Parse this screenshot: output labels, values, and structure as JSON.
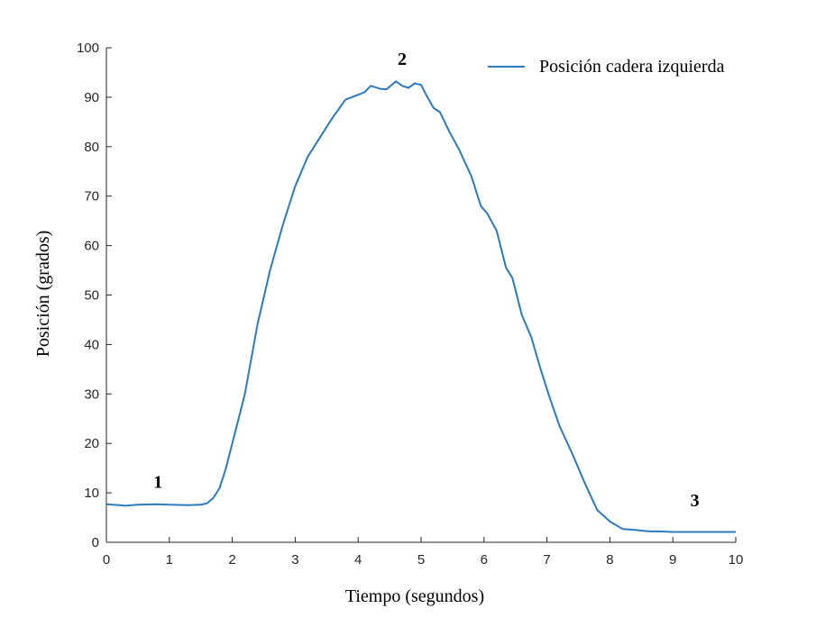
{
  "chart_data": {
    "type": "line",
    "title": "",
    "xlabel": "Tiempo (segundos)",
    "ylabel": "Posición (grados)",
    "xlim": [
      0,
      10
    ],
    "ylim": [
      0,
      100
    ],
    "x_ticks": [
      0,
      1,
      2,
      3,
      4,
      5,
      6,
      7,
      8,
      9,
      10
    ],
    "y_ticks": [
      0,
      10,
      20,
      30,
      40,
      50,
      60,
      70,
      80,
      90,
      100
    ],
    "grid": false,
    "legend_position": "top-right",
    "series": [
      {
        "name": "Posición cadera izquierda",
        "color": "#2a7bbf",
        "x": [
          0,
          0.2,
          0.3,
          0.5,
          0.8,
          1.0,
          1.3,
          1.5,
          1.6,
          1.7,
          1.8,
          1.9,
          2.0,
          2.2,
          2.4,
          2.6,
          2.8,
          3.0,
          3.2,
          3.4,
          3.6,
          3.8,
          4.0,
          4.1,
          4.2,
          4.35,
          4.45,
          4.6,
          4.7,
          4.8,
          4.9,
          5.0,
          5.1,
          5.2,
          5.3,
          5.45,
          5.6,
          5.8,
          5.95,
          6.05,
          6.2,
          6.35,
          6.45,
          6.6,
          6.75,
          6.9,
          7.05,
          7.2,
          7.4,
          7.6,
          7.8,
          8.0,
          8.2,
          8.4,
          8.55,
          8.65,
          8.8,
          9.0,
          9.3,
          9.6,
          10.0
        ],
        "y": [
          7.7,
          7.5,
          7.4,
          7.6,
          7.7,
          7.6,
          7.5,
          7.6,
          7.9,
          9.0,
          11.0,
          15.0,
          20.0,
          30.0,
          44.0,
          55.0,
          64.0,
          72.0,
          78.0,
          82.0,
          86.0,
          89.5,
          90.5,
          91.0,
          92.3,
          91.7,
          91.6,
          93.2,
          92.3,
          91.9,
          92.8,
          92.5,
          90.0,
          87.8,
          87.0,
          83.0,
          79.5,
          74.0,
          68.0,
          66.5,
          63.0,
          55.5,
          53.5,
          46.0,
          41.5,
          35.0,
          29.0,
          23.5,
          18.0,
          12.0,
          6.5,
          4.2,
          2.7,
          2.5,
          2.3,
          2.2,
          2.2,
          2.1,
          2.1,
          2.1,
          2.1
        ]
      }
    ],
    "annotations": [
      {
        "text": "1",
        "x": 0.82,
        "y": 11.0
      },
      {
        "text": "2",
        "x": 4.7,
        "y": 96.5
      },
      {
        "text": "3",
        "x": 9.35,
        "y": 7.3
      }
    ]
  }
}
